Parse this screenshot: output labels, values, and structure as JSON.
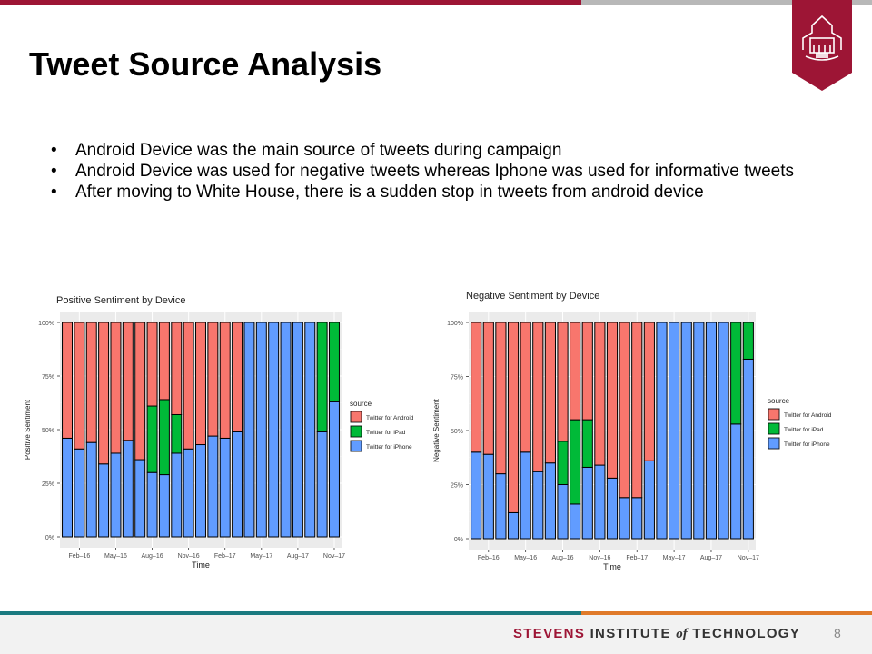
{
  "slide": {
    "title": "Tweet Source Analysis",
    "bullets": [
      "Android Device was the main source of tweets during campaign",
      "Android Device was used for negative tweets whereas Iphone was used for informative tweets",
      "After moving to White House, there is a sudden stop in tweets from android device"
    ],
    "footer": {
      "stevens": "STEVENS",
      "institute": "INSTITUTE",
      "of": "of",
      "technology": "TECHNOLOGY"
    },
    "page_number": "8",
    "colors": {
      "brand_red": "#9d1535",
      "teal": "#1b7a80",
      "orange": "#e07a2a"
    }
  },
  "chart_data": [
    {
      "type": "bar",
      "stacked": true,
      "title": "Positive Sentiment by Device",
      "xlabel": "Time",
      "ylabel": "Positive Sentiment",
      "ylim": [
        0,
        1
      ],
      "yticks": [
        "0%",
        "25%",
        "50%",
        "75%",
        "100%"
      ],
      "xticks": [
        "Feb–16",
        "May–16",
        "Aug–16",
        "Nov–16",
        "Feb–17",
        "May–17",
        "Aug–17",
        "Nov–17"
      ],
      "categories": [
        "Jan-16",
        "Feb-16",
        "Mar-16",
        "Apr-16",
        "May-16",
        "Jun-16",
        "Jul-16",
        "Aug-16",
        "Sep-16",
        "Oct-16",
        "Nov-16",
        "Dec-16",
        "Jan-17",
        "Feb-17",
        "Mar-17",
        "Apr-17",
        "May-17",
        "Jun-17",
        "Jul-17",
        "Aug-17",
        "Sep-17",
        "Oct-17",
        "Nov-17"
      ],
      "legend_title": "source",
      "legend_position": "right",
      "series": [
        {
          "name": "Twitter for iPhone",
          "color": "#619cff",
          "values": [
            0.46,
            0.41,
            0.44,
            0.34,
            0.39,
            0.45,
            0.36,
            0.3,
            0.29,
            0.39,
            0.41,
            0.43,
            0.47,
            0.46,
            0.49,
            1.0,
            1.0,
            1.0,
            1.0,
            1.0,
            1.0,
            0.49,
            0.63
          ]
        },
        {
          "name": "Twitter for iPad",
          "color": "#00ba38",
          "values": [
            0,
            0,
            0,
            0,
            0,
            0,
            0,
            0.31,
            0.35,
            0.18,
            0,
            0,
            0,
            0,
            0,
            0,
            0,
            0,
            0,
            0,
            0,
            0.51,
            0.37
          ]
        },
        {
          "name": "Twitter for Android",
          "color": "#f8766d",
          "values": [
            0.54,
            0.59,
            0.56,
            0.66,
            0.61,
            0.55,
            0.64,
            0.39,
            0.36,
            0.43,
            0.59,
            0.57,
            0.53,
            0.54,
            0.51,
            0,
            0,
            0,
            0,
            0,
            0,
            0,
            0
          ]
        }
      ]
    },
    {
      "type": "bar",
      "stacked": true,
      "title": "Negative Sentiment by Device",
      "xlabel": "Time",
      "ylabel": "Negative Sentiment",
      "ylim": [
        0,
        1
      ],
      "yticks": [
        "0%",
        "25%",
        "50%",
        "75%",
        "100%"
      ],
      "xticks": [
        "Feb–16",
        "May–16",
        "Aug–16",
        "Nov–16",
        "Feb–17",
        "May–17",
        "Aug–17",
        "Nov–17"
      ],
      "categories": [
        "Jan-16",
        "Feb-16",
        "Mar-16",
        "Apr-16",
        "May-16",
        "Jun-16",
        "Jul-16",
        "Aug-16",
        "Sep-16",
        "Oct-16",
        "Nov-16",
        "Dec-16",
        "Jan-17",
        "Feb-17",
        "Mar-17",
        "Apr-17",
        "May-17",
        "Jun-17",
        "Jul-17",
        "Aug-17",
        "Sep-17",
        "Oct-17",
        "Nov-17"
      ],
      "legend_title": "source",
      "legend_position": "right",
      "series": [
        {
          "name": "Twitter for iPhone",
          "color": "#619cff",
          "values": [
            0.4,
            0.39,
            0.3,
            0.12,
            0.4,
            0.31,
            0.35,
            0.25,
            0.16,
            0.33,
            0.34,
            0.28,
            0.19,
            0.19,
            0.36,
            1.0,
            1.0,
            1.0,
            1.0,
            1.0,
            1.0,
            0.53,
            0.83
          ]
        },
        {
          "name": "Twitter for iPad",
          "color": "#00ba38",
          "values": [
            0,
            0,
            0,
            0,
            0,
            0,
            0,
            0.2,
            0.39,
            0.22,
            0,
            0,
            0,
            0,
            0,
            0,
            0,
            0,
            0,
            0,
            0,
            0.47,
            0.17
          ]
        },
        {
          "name": "Twitter for Android",
          "color": "#f8766d",
          "values": [
            0.6,
            0.61,
            0.7,
            0.88,
            0.6,
            0.69,
            0.65,
            0.55,
            0.45,
            0.45,
            0.66,
            0.72,
            0.81,
            0.81,
            0.64,
            0,
            0,
            0,
            0,
            0,
            0,
            0,
            0
          ]
        }
      ]
    }
  ]
}
